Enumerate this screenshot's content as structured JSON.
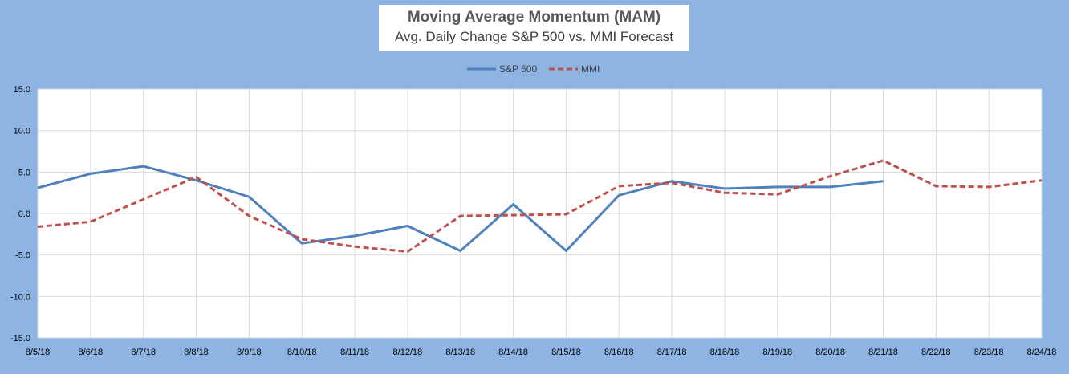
{
  "chart_data": {
    "type": "line",
    "title": "Moving Average Momentum (MAM)",
    "subtitle": "Avg. Daily Change S&P 500 vs. MMI Forecast",
    "categories": [
      "8/5/18",
      "8/6/18",
      "8/7/18",
      "8/8/18",
      "8/9/18",
      "8/10/18",
      "8/11/18",
      "8/12/18",
      "8/13/18",
      "8/14/18",
      "8/15/18",
      "8/16/18",
      "8/17/18",
      "8/18/18",
      "8/19/18",
      "8/20/18",
      "8/21/18",
      "8/22/18",
      "8/23/18",
      "8/24/18"
    ],
    "ylim": [
      -15,
      15
    ],
    "yticks": [
      "15.0",
      "10.0",
      "5.0",
      "0.0",
      "-5.0",
      "-10.0",
      "-15.0"
    ],
    "ytick_values": [
      15,
      10,
      5,
      0,
      -5,
      -10,
      -15
    ],
    "grid": true,
    "legend_position": "top-center",
    "series": [
      {
        "name": "S&P 500",
        "color": "#4f81bd",
        "style": "solid",
        "values": [
          3.1,
          4.8,
          5.7,
          4.0,
          2.0,
          -3.6,
          -2.7,
          -1.5,
          -4.5,
          1.1,
          -4.5,
          2.2,
          3.9,
          3.0,
          3.2,
          3.2,
          3.9,
          null,
          null,
          null
        ]
      },
      {
        "name": "MMI",
        "color": "#c0504d",
        "style": "dashed",
        "values": [
          -1.6,
          -1.0,
          1.7,
          4.4,
          -0.3,
          -3.1,
          -4.0,
          -4.6,
          -0.3,
          -0.2,
          -0.1,
          3.3,
          3.7,
          2.5,
          2.3,
          4.5,
          6.4,
          3.3,
          3.2,
          4.0
        ]
      }
    ]
  }
}
